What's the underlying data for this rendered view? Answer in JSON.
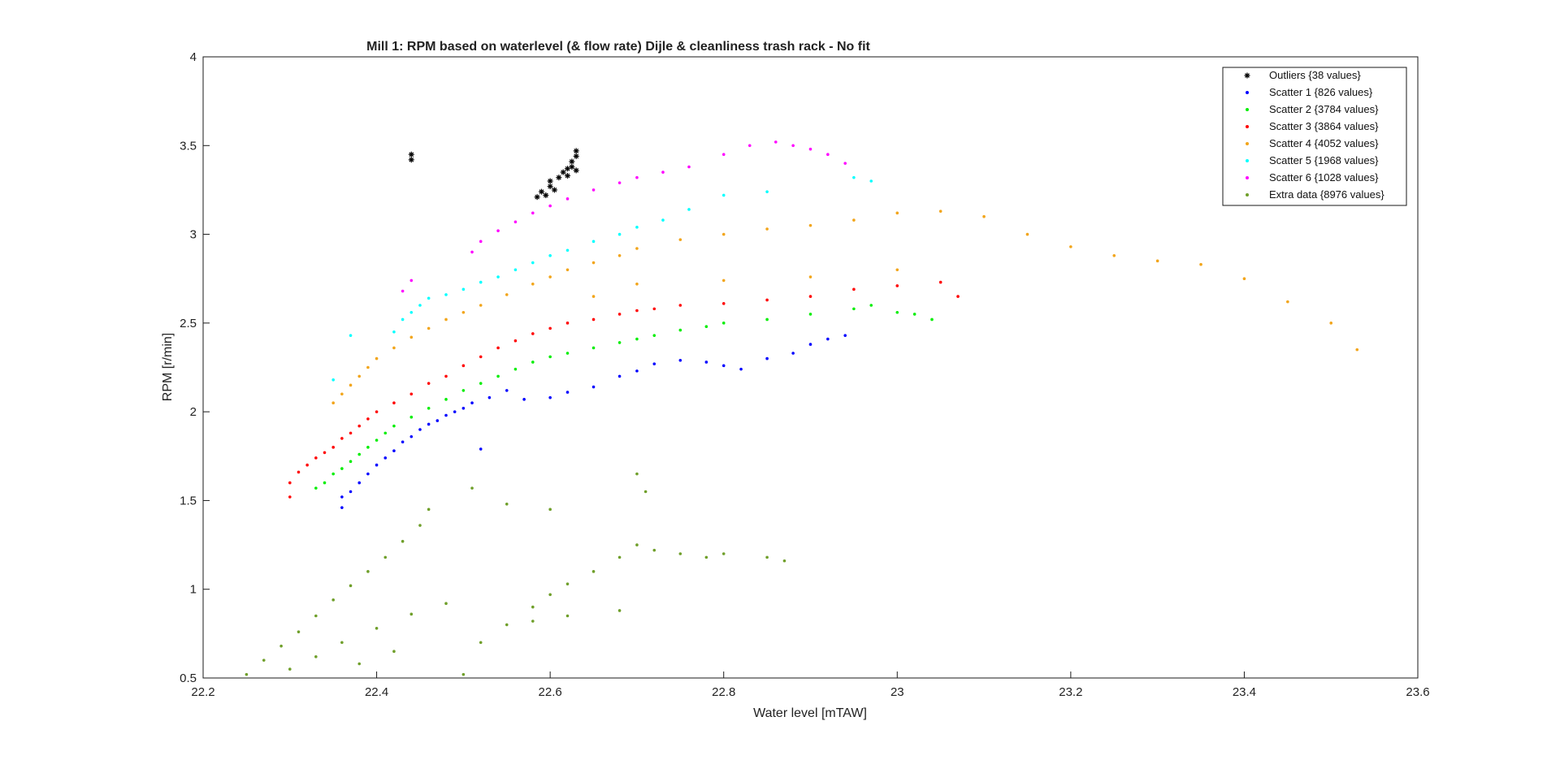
{
  "chart_data": {
    "type": "scatter",
    "title": "Mill 1: RPM based on waterlevel (& flow rate) Dijle & cleanliness trash rack - No fit",
    "xlabel": "Water level [mTAW]",
    "ylabel": "RPM [r/min]",
    "xlim": [
      22.2,
      23.6
    ],
    "ylim": [
      0.5,
      4
    ],
    "xticks": [
      "22.2",
      "22.4",
      "22.6",
      "22.8",
      "23",
      "23.2",
      "23.4",
      "23.6"
    ],
    "yticks": [
      "0.5",
      "1",
      "1.5",
      "2",
      "2.5",
      "3",
      "3.5",
      "4"
    ],
    "grid": false,
    "legend_position": "top-right",
    "series": [
      {
        "name": "Outliers {38 values}",
        "color": "#000000",
        "marker": "asterisk",
        "points": [
          [
            22.44,
            3.42
          ],
          [
            22.44,
            3.45
          ],
          [
            22.585,
            3.21
          ],
          [
            22.59,
            3.24
          ],
          [
            22.595,
            3.22
          ],
          [
            22.6,
            3.27
          ],
          [
            22.6,
            3.3
          ],
          [
            22.605,
            3.25
          ],
          [
            22.61,
            3.32
          ],
          [
            22.615,
            3.35
          ],
          [
            22.62,
            3.33
          ],
          [
            22.62,
            3.37
          ],
          [
            22.625,
            3.38
          ],
          [
            22.625,
            3.41
          ],
          [
            22.63,
            3.44
          ],
          [
            22.63,
            3.47
          ],
          [
            22.63,
            3.36
          ]
        ]
      },
      {
        "name": "Scatter 1 {826 values}",
        "color": "#0000ff",
        "marker": "dot",
        "points": [
          [
            22.36,
            1.46
          ],
          [
            22.36,
            1.52
          ],
          [
            22.37,
            1.55
          ],
          [
            22.38,
            1.6
          ],
          [
            22.39,
            1.65
          ],
          [
            22.4,
            1.7
          ],
          [
            22.41,
            1.74
          ],
          [
            22.42,
            1.78
          ],
          [
            22.43,
            1.83
          ],
          [
            22.44,
            1.86
          ],
          [
            22.45,
            1.9
          ],
          [
            22.46,
            1.93
          ],
          [
            22.47,
            1.95
          ],
          [
            22.48,
            1.98
          ],
          [
            22.49,
            2.0
          ],
          [
            22.5,
            2.02
          ],
          [
            22.51,
            2.05
          ],
          [
            22.52,
            1.79
          ],
          [
            22.53,
            2.08
          ],
          [
            22.55,
            2.12
          ],
          [
            22.57,
            2.07
          ],
          [
            22.6,
            2.08
          ],
          [
            22.62,
            2.11
          ],
          [
            22.65,
            2.14
          ],
          [
            22.68,
            2.2
          ],
          [
            22.7,
            2.23
          ],
          [
            22.72,
            2.27
          ],
          [
            22.75,
            2.29
          ],
          [
            22.78,
            2.28
          ],
          [
            22.8,
            2.26
          ],
          [
            22.82,
            2.24
          ],
          [
            22.85,
            2.3
          ],
          [
            22.88,
            2.33
          ],
          [
            22.9,
            2.38
          ],
          [
            22.92,
            2.41
          ],
          [
            22.94,
            2.43
          ]
        ]
      },
      {
        "name": "Scatter 2 {3784 values}",
        "color": "#00ee00",
        "marker": "dot",
        "points": [
          [
            22.33,
            1.57
          ],
          [
            22.34,
            1.6
          ],
          [
            22.35,
            1.65
          ],
          [
            22.36,
            1.68
          ],
          [
            22.37,
            1.72
          ],
          [
            22.38,
            1.76
          ],
          [
            22.39,
            1.8
          ],
          [
            22.4,
            1.84
          ],
          [
            22.41,
            1.88
          ],
          [
            22.42,
            1.92
          ],
          [
            22.44,
            1.97
          ],
          [
            22.46,
            2.02
          ],
          [
            22.48,
            2.07
          ],
          [
            22.5,
            2.12
          ],
          [
            22.52,
            2.16
          ],
          [
            22.54,
            2.2
          ],
          [
            22.56,
            2.24
          ],
          [
            22.58,
            2.28
          ],
          [
            22.6,
            2.31
          ],
          [
            22.62,
            2.33
          ],
          [
            22.65,
            2.36
          ],
          [
            22.68,
            2.39
          ],
          [
            22.7,
            2.41
          ],
          [
            22.72,
            2.43
          ],
          [
            22.75,
            2.46
          ],
          [
            22.78,
            2.48
          ],
          [
            22.8,
            2.5
          ],
          [
            22.85,
            2.52
          ],
          [
            22.9,
            2.55
          ],
          [
            22.95,
            2.58
          ],
          [
            22.97,
            2.6
          ],
          [
            23.0,
            2.56
          ],
          [
            23.02,
            2.55
          ],
          [
            23.04,
            2.52
          ]
        ]
      },
      {
        "name": "Scatter 3 {3864 values}",
        "color": "#ff0000",
        "marker": "dot",
        "points": [
          [
            22.3,
            1.52
          ],
          [
            22.3,
            1.6
          ],
          [
            22.31,
            1.66
          ],
          [
            22.32,
            1.7
          ],
          [
            22.33,
            1.74
          ],
          [
            22.34,
            1.77
          ],
          [
            22.35,
            1.8
          ],
          [
            22.36,
            1.85
          ],
          [
            22.37,
            1.88
          ],
          [
            22.38,
            1.92
          ],
          [
            22.39,
            1.96
          ],
          [
            22.4,
            2.0
          ],
          [
            22.42,
            2.05
          ],
          [
            22.44,
            2.1
          ],
          [
            22.46,
            2.16
          ],
          [
            22.48,
            2.2
          ],
          [
            22.5,
            2.26
          ],
          [
            22.52,
            2.31
          ],
          [
            22.54,
            2.36
          ],
          [
            22.56,
            2.4
          ],
          [
            22.58,
            2.44
          ],
          [
            22.6,
            2.47
          ],
          [
            22.62,
            2.5
          ],
          [
            22.65,
            2.52
          ],
          [
            22.68,
            2.55
          ],
          [
            22.7,
            2.57
          ],
          [
            22.72,
            2.58
          ],
          [
            22.75,
            2.6
          ],
          [
            22.8,
            2.61
          ],
          [
            22.85,
            2.63
          ],
          [
            22.9,
            2.65
          ],
          [
            22.95,
            2.69
          ],
          [
            23.0,
            2.71
          ],
          [
            23.05,
            2.73
          ],
          [
            23.07,
            2.65
          ]
        ]
      },
      {
        "name": "Scatter 4 {4052 values}",
        "color": "#f2a51a",
        "marker": "dot",
        "points": [
          [
            22.35,
            2.05
          ],
          [
            22.36,
            2.1
          ],
          [
            22.37,
            2.15
          ],
          [
            22.38,
            2.2
          ],
          [
            22.39,
            2.25
          ],
          [
            22.4,
            2.3
          ],
          [
            22.42,
            2.36
          ],
          [
            22.44,
            2.42
          ],
          [
            22.46,
            2.47
          ],
          [
            22.48,
            2.52
          ],
          [
            22.5,
            2.56
          ],
          [
            22.52,
            2.6
          ],
          [
            22.55,
            2.66
          ],
          [
            22.58,
            2.72
          ],
          [
            22.6,
            2.76
          ],
          [
            22.62,
            2.8
          ],
          [
            22.65,
            2.84
          ],
          [
            22.68,
            2.88
          ],
          [
            22.7,
            2.92
          ],
          [
            22.75,
            2.97
          ],
          [
            22.8,
            3.0
          ],
          [
            22.85,
            3.03
          ],
          [
            22.9,
            3.05
          ],
          [
            22.95,
            3.08
          ],
          [
            23.0,
            3.12
          ],
          [
            23.05,
            3.13
          ],
          [
            23.1,
            3.1
          ],
          [
            23.15,
            3.0
          ],
          [
            23.2,
            2.93
          ],
          [
            23.25,
            2.88
          ],
          [
            23.3,
            2.85
          ],
          [
            23.35,
            2.83
          ],
          [
            23.4,
            2.75
          ],
          [
            23.45,
            2.62
          ],
          [
            23.5,
            2.5
          ],
          [
            23.53,
            2.35
          ],
          [
            22.7,
            2.72
          ],
          [
            22.8,
            2.74
          ],
          [
            22.9,
            2.76
          ],
          [
            23.0,
            2.8
          ],
          [
            22.65,
            2.65
          ]
        ]
      },
      {
        "name": "Scatter 5 {1968 values}",
        "color": "#00ffff",
        "marker": "dot",
        "points": [
          [
            22.35,
            2.18
          ],
          [
            22.37,
            2.43
          ],
          [
            22.42,
            2.45
          ],
          [
            22.43,
            2.52
          ],
          [
            22.44,
            2.56
          ],
          [
            22.45,
            2.6
          ],
          [
            22.46,
            2.64
          ],
          [
            22.48,
            2.66
          ],
          [
            22.5,
            2.69
          ],
          [
            22.52,
            2.73
          ],
          [
            22.54,
            2.76
          ],
          [
            22.56,
            2.8
          ],
          [
            22.58,
            2.84
          ],
          [
            22.6,
            2.88
          ],
          [
            22.62,
            2.91
          ],
          [
            22.65,
            2.96
          ],
          [
            22.68,
            3.0
          ],
          [
            22.7,
            3.04
          ],
          [
            22.73,
            3.08
          ],
          [
            22.76,
            3.14
          ],
          [
            22.8,
            3.22
          ],
          [
            22.85,
            3.24
          ],
          [
            22.95,
            3.32
          ],
          [
            22.97,
            3.3
          ]
        ]
      },
      {
        "name": "Scatter 6 {1028 values}",
        "color": "#ff00ff",
        "marker": "dot",
        "points": [
          [
            22.43,
            2.68
          ],
          [
            22.44,
            2.74
          ],
          [
            22.51,
            2.9
          ],
          [
            22.52,
            2.96
          ],
          [
            22.54,
            3.02
          ],
          [
            22.56,
            3.07
          ],
          [
            22.58,
            3.12
          ],
          [
            22.6,
            3.16
          ],
          [
            22.62,
            3.2
          ],
          [
            22.65,
            3.25
          ],
          [
            22.68,
            3.29
          ],
          [
            22.7,
            3.32
          ],
          [
            22.73,
            3.35
          ],
          [
            22.76,
            3.38
          ],
          [
            22.8,
            3.45
          ],
          [
            22.83,
            3.5
          ],
          [
            22.86,
            3.52
          ],
          [
            22.88,
            3.5
          ],
          [
            22.9,
            3.48
          ],
          [
            22.92,
            3.45
          ],
          [
            22.94,
            3.4
          ]
        ]
      },
      {
        "name": "Extra data {8976 values}",
        "color": "#6f9f2a",
        "marker": "dot",
        "points": [
          [
            22.25,
            0.52
          ],
          [
            22.27,
            0.6
          ],
          [
            22.29,
            0.68
          ],
          [
            22.31,
            0.76
          ],
          [
            22.33,
            0.85
          ],
          [
            22.35,
            0.94
          ],
          [
            22.37,
            1.02
          ],
          [
            22.39,
            1.1
          ],
          [
            22.41,
            1.18
          ],
          [
            22.43,
            1.27
          ],
          [
            22.45,
            1.36
          ],
          [
            22.46,
            1.45
          ],
          [
            22.3,
            0.55
          ],
          [
            22.33,
            0.62
          ],
          [
            22.36,
            0.7
          ],
          [
            22.4,
            0.78
          ],
          [
            22.44,
            0.86
          ],
          [
            22.48,
            0.92
          ],
          [
            22.5,
            0.52
          ],
          [
            22.52,
            0.7
          ],
          [
            22.55,
            0.8
          ],
          [
            22.58,
            0.9
          ],
          [
            22.6,
            0.97
          ],
          [
            22.62,
            1.03
          ],
          [
            22.65,
            1.1
          ],
          [
            22.68,
            1.18
          ],
          [
            22.7,
            1.25
          ],
          [
            22.72,
            1.22
          ],
          [
            22.75,
            1.2
          ],
          [
            22.78,
            1.18
          ],
          [
            22.8,
            1.2
          ],
          [
            22.85,
            1.18
          ],
          [
            22.87,
            1.16
          ],
          [
            22.6,
            1.45
          ],
          [
            22.7,
            1.65
          ],
          [
            22.71,
            1.55
          ],
          [
            22.68,
            0.88
          ],
          [
            22.62,
            0.85
          ],
          [
            22.58,
            0.82
          ],
          [
            22.55,
            1.48
          ],
          [
            22.51,
            1.57
          ],
          [
            22.38,
            0.58
          ],
          [
            22.42,
            0.65
          ]
        ]
      }
    ]
  }
}
